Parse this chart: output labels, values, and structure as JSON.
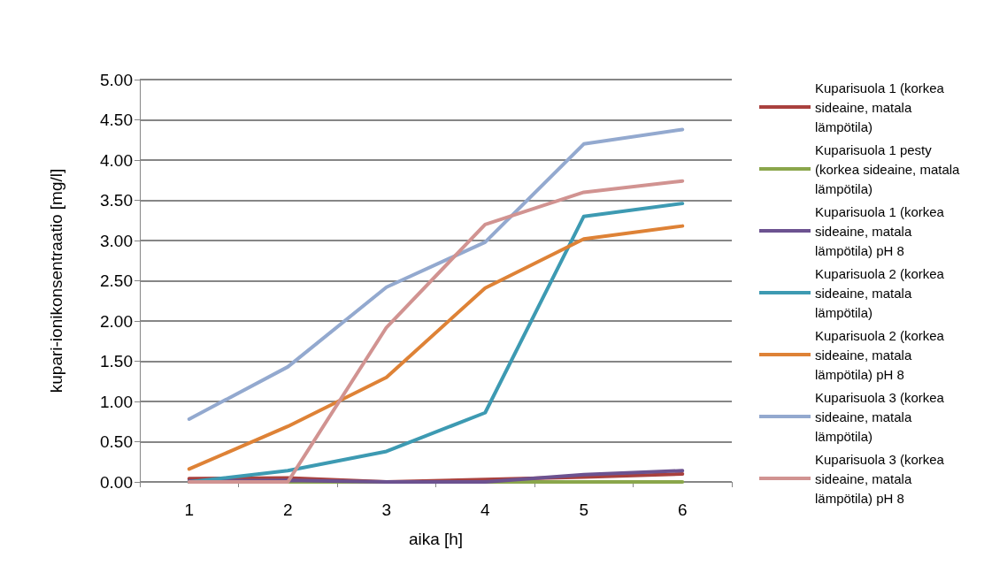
{
  "chart_data": {
    "type": "line",
    "xlabel": "aika [h]",
    "ylabel": "kupari-ionikonsentraatio [mg/l]",
    "categories": [
      "1",
      "2",
      "3",
      "4",
      "5",
      "6"
    ],
    "ylim": [
      0,
      5
    ],
    "yticks": [
      {
        "value": 0,
        "label": "0.00"
      },
      {
        "value": 0.5,
        "label": "0.50"
      },
      {
        "value": 1,
        "label": "1.00"
      },
      {
        "value": 1.5,
        "label": "1.50"
      },
      {
        "value": 2,
        "label": "2.00"
      },
      {
        "value": 2.5,
        "label": "2.50"
      },
      {
        "value": 3,
        "label": "3.00"
      },
      {
        "value": 3.5,
        "label": "3.50"
      },
      {
        "value": 4,
        "label": "4.00"
      },
      {
        "value": 4.5,
        "label": "4.50"
      },
      {
        "value": 5,
        "label": "5.00"
      }
    ],
    "grid": "y",
    "legend": "right",
    "marker": "none",
    "series": [
      {
        "name": "Kuparisuola 1 (korkea sideaine, matala lämpötila)",
        "color": "#a9413e",
        "values": [
          0.04,
          0.05,
          0.0,
          0.03,
          0.06,
          0.1
        ]
      },
      {
        "name": "Kuparisuola 1 pesty (korkea sideaine, matala lämpötila)",
        "color": "#8aa64b",
        "values": [
          0,
          0,
          0,
          0,
          0,
          0
        ]
      },
      {
        "name": "Kuparisuola 1 (korkea sideaine, matala lämpötila) pH 8",
        "color": "#6c5290",
        "values": [
          0.01,
          0.02,
          0.0,
          0.0,
          0.09,
          0.14
        ]
      },
      {
        "name": "Kuparisuola 2 (korkea sideaine, matala lämpötila)",
        "color": "#3d9ab2",
        "values": [
          0.0,
          0.14,
          0.38,
          0.86,
          3.3,
          3.46
        ]
      },
      {
        "name": "Kuparisuola 2 (korkea sideaine, matala lämpötila) pH 8",
        "color": "#de8236",
        "values": [
          0.16,
          0.69,
          1.3,
          2.41,
          3.02,
          3.18
        ]
      },
      {
        "name": "Kuparisuola 3 (korkea sideaine, matala lämpötila)",
        "color": "#93a9cf",
        "values": [
          0.78,
          1.43,
          2.42,
          2.98,
          4.2,
          4.38
        ]
      },
      {
        "name": "Kuparisuola 3 (korkea sideaine, matala lämpötila) pH 8",
        "color": "#d19391",
        "values": [
          0.0,
          0.0,
          1.92,
          3.2,
          3.6,
          3.74
        ]
      }
    ]
  }
}
